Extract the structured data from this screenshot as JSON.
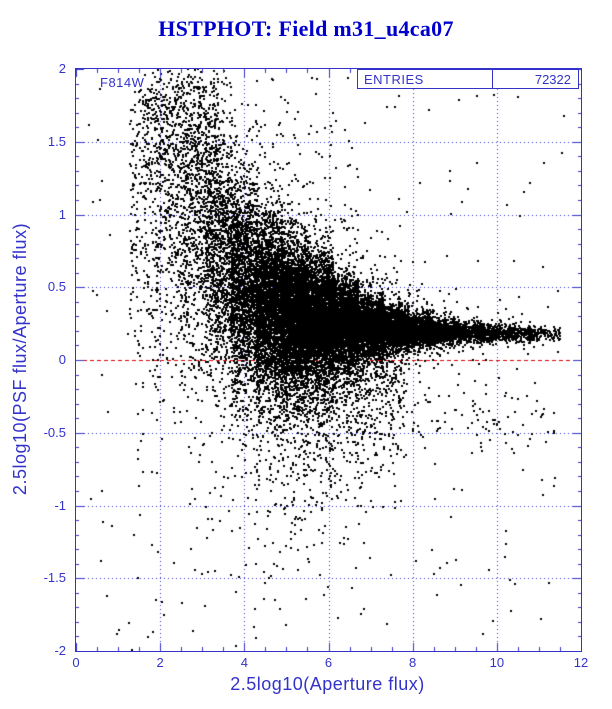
{
  "chart_data": {
    "type": "scatter",
    "title": "HSTPHOT: Field m31_u4ca07",
    "xlabel": "2.5log10(Aperture flux)",
    "ylabel": "2.5log10(PSF flux/Aperture flux)",
    "annotation": "F814W",
    "stats": {
      "label": "ENTRIES",
      "value": "72322"
    },
    "entries": 72322,
    "xlim": [
      0,
      12
    ],
    "ylim": [
      -2,
      2
    ],
    "x_ticks": [
      0,
      2,
      4,
      6,
      8,
      10,
      12
    ],
    "y_ticks": [
      -2,
      -1.5,
      -1,
      -0.5,
      0,
      0.5,
      1,
      1.5,
      2
    ],
    "x_minor_step": 0.5,
    "y_minor_step": 0.1,
    "grid": {
      "style": "dotted",
      "at_major_ticks": true
    },
    "reference_line": {
      "y": 0,
      "style": "dashed"
    },
    "legend_position": "none",
    "colors": {
      "title": "#0000cc",
      "axis": "#3333cc",
      "grid": "#3333cc",
      "points": "#000000",
      "reference": "#dd0000",
      "background": "#ffffff"
    },
    "description": "Funnel-shaped scatter of PSF/aperture flux ratio vs aperture flux: wide vertical spread (-2 to +2) at low flux (x~1.5-4) converging to a tight dense band near y~0.18 at high flux (x~8-11.5); solid black core between x~4.5 and x~8 around y~0.2-0.4; red dashed reference line at y=0.",
    "render": {
      "seed": 7,
      "count": 24000,
      "bin_width": 0.62,
      "marker_px": 2,
      "bins": [
        {
          "x": 1.6,
          "w": 0.01,
          "y": 1.15,
          "s": 0.7
        },
        {
          "x": 2.2,
          "w": 0.018,
          "y": 1.1,
          "s": 0.62
        },
        {
          "x": 2.8,
          "w": 0.028,
          "y": 0.95,
          "s": 0.55
        },
        {
          "x": 3.4,
          "w": 0.05,
          "y": 0.75,
          "s": 0.45
        },
        {
          "x": 4.0,
          "w": 0.085,
          "y": 0.52,
          "s": 0.36
        },
        {
          "x": 4.6,
          "w": 0.125,
          "y": 0.4,
          "s": 0.29
        },
        {
          "x": 5.2,
          "w": 0.15,
          "y": 0.32,
          "s": 0.25
        },
        {
          "x": 5.8,
          "w": 0.14,
          "y": 0.28,
          "s": 0.21
        },
        {
          "x": 6.4,
          "w": 0.12,
          "y": 0.25,
          "s": 0.15
        },
        {
          "x": 7.0,
          "w": 0.095,
          "y": 0.23,
          "s": 0.105
        },
        {
          "x": 7.6,
          "w": 0.07,
          "y": 0.215,
          "s": 0.075
        },
        {
          "x": 8.2,
          "w": 0.048,
          "y": 0.2,
          "s": 0.055
        },
        {
          "x": 8.8,
          "w": 0.032,
          "y": 0.195,
          "s": 0.042
        },
        {
          "x": 9.4,
          "w": 0.02,
          "y": 0.19,
          "s": 0.035
        },
        {
          "x": 10.0,
          "w": 0.013,
          "y": 0.185,
          "s": 0.03
        },
        {
          "x": 10.6,
          "w": 0.008,
          "y": 0.18,
          "s": 0.028
        },
        {
          "x": 11.2,
          "w": 0.004,
          "y": 0.18,
          "s": 0.026
        }
      ],
      "outliers": {
        "fraction": 0.055,
        "sigma_mult": 3.2
      },
      "down_tail": {
        "fraction": 0.09,
        "scale": 0.5,
        "xmin": 3.8,
        "xmax": 7.8
      },
      "plume": {
        "count": 480,
        "x_center": 2.5,
        "x_spread": 0.9,
        "y": 1.62,
        "sigma": 0.3
      },
      "low_band": {
        "count": 130,
        "y": -0.4,
        "sigma": 0.14,
        "xmin": 5.5,
        "xmax": 11.4
      },
      "stray": {
        "count": 260
      }
    }
  }
}
